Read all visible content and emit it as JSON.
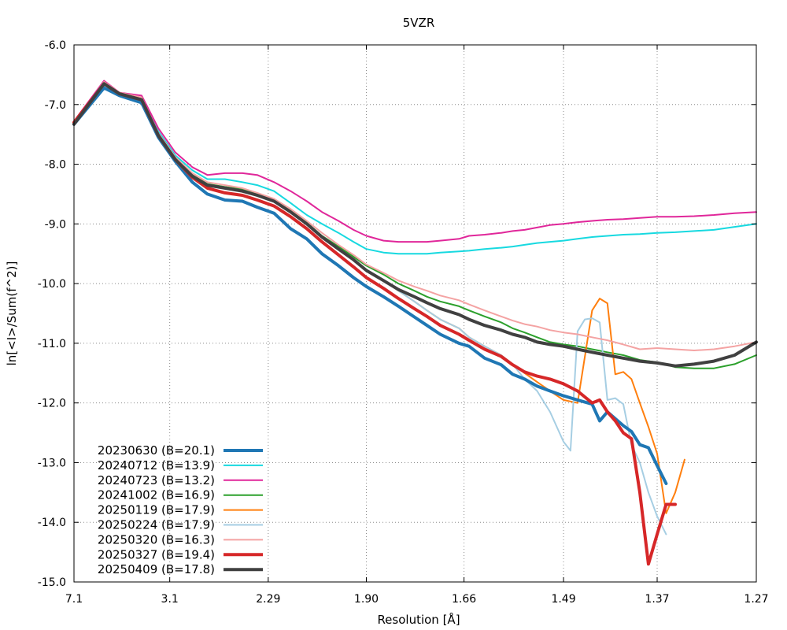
{
  "chart_data": {
    "type": "line",
    "title": "5VZR",
    "xlabel": "Resolution [Å]",
    "ylabel": "ln[<I>/Sum(f^2)]",
    "x_scale": "reciprocal_squared",
    "xlim": [
      7.1,
      1.27
    ],
    "ylim": [
      -15.0,
      -6.0
    ],
    "x_ticks": [
      "7.1",
      "3.1",
      "2.29",
      "1.90",
      "1.66",
      "1.49",
      "1.37",
      "1.27"
    ],
    "y_ticks": [
      "-6.0",
      "-7.0",
      "-8.0",
      "-9.0",
      "-10.0",
      "-11.0",
      "-12.0",
      "-13.0",
      "-14.0",
      "-15.0"
    ],
    "grid": true,
    "legend_position": "bottom-left",
    "series": [
      {
        "name": "20230630 (B=20.1)",
        "color": "#1f77b4",
        "width": 4,
        "x": [
          7.1,
          4.65,
          4.09,
          3.55,
          3.26,
          3.03,
          2.84,
          2.7,
          2.56,
          2.44,
          2.35,
          2.26,
          2.18,
          2.11,
          2.05,
          1.99,
          1.94,
          1.9,
          1.85,
          1.81,
          1.77,
          1.74,
          1.71,
          1.67,
          1.65,
          1.62,
          1.59,
          1.57,
          1.55,
          1.53,
          1.51,
          1.49,
          1.47,
          1.45,
          1.44,
          1.43,
          1.41,
          1.4,
          1.39,
          1.38,
          1.37,
          1.36
        ],
        "y": [
          -7.33,
          -6.72,
          -6.85,
          -6.97,
          -7.55,
          -7.95,
          -8.3,
          -8.5,
          -8.6,
          -8.62,
          -8.72,
          -8.82,
          -9.08,
          -9.25,
          -9.5,
          -9.7,
          -9.9,
          -10.05,
          -10.22,
          -10.38,
          -10.56,
          -10.7,
          -10.85,
          -11.0,
          -11.05,
          -11.25,
          -11.36,
          -11.52,
          -11.6,
          -11.72,
          -11.8,
          -11.88,
          -11.95,
          -12.02,
          -12.3,
          -12.15,
          -12.38,
          -12.48,
          -12.7,
          -12.75,
          -13.05,
          -13.35
        ]
      },
      {
        "name": "20240712 (B=13.9)",
        "color": "#17d9e0",
        "width": 2,
        "x": [
          7.1,
          4.65,
          4.09,
          3.55,
          3.26,
          3.03,
          2.84,
          2.7,
          2.56,
          2.44,
          2.35,
          2.26,
          2.18,
          2.11,
          2.05,
          1.99,
          1.94,
          1.9,
          1.85,
          1.81,
          1.77,
          1.74,
          1.71,
          1.67,
          1.65,
          1.62,
          1.59,
          1.57,
          1.55,
          1.53,
          1.51,
          1.49,
          1.47,
          1.45,
          1.43,
          1.41,
          1.39,
          1.37,
          1.35,
          1.33,
          1.31,
          1.29,
          1.27
        ],
        "y": [
          -7.3,
          -6.62,
          -6.82,
          -6.9,
          -7.45,
          -7.85,
          -8.1,
          -8.25,
          -8.25,
          -8.3,
          -8.35,
          -8.45,
          -8.65,
          -8.85,
          -9.0,
          -9.15,
          -9.3,
          -9.42,
          -9.48,
          -9.5,
          -9.5,
          -9.5,
          -9.48,
          -9.46,
          -9.45,
          -9.42,
          -9.4,
          -9.38,
          -9.35,
          -9.32,
          -9.3,
          -9.28,
          -9.25,
          -9.22,
          -9.2,
          -9.18,
          -9.17,
          -9.15,
          -9.14,
          -9.12,
          -9.1,
          -9.05,
          -9.0
        ]
      },
      {
        "name": "20240723 (B=13.2)",
        "color": "#e0279a",
        "width": 2,
        "x": [
          7.1,
          4.65,
          4.09,
          3.55,
          3.26,
          3.03,
          2.84,
          2.7,
          2.56,
          2.44,
          2.35,
          2.26,
          2.18,
          2.11,
          2.05,
          1.99,
          1.94,
          1.9,
          1.85,
          1.81,
          1.77,
          1.74,
          1.71,
          1.67,
          1.65,
          1.62,
          1.59,
          1.57,
          1.55,
          1.53,
          1.51,
          1.49,
          1.47,
          1.45,
          1.43,
          1.41,
          1.39,
          1.37,
          1.35,
          1.33,
          1.31,
          1.29,
          1.27
        ],
        "y": [
          -7.28,
          -6.6,
          -6.8,
          -6.85,
          -7.4,
          -7.8,
          -8.05,
          -8.18,
          -8.15,
          -8.15,
          -8.18,
          -8.3,
          -8.45,
          -8.62,
          -8.8,
          -8.95,
          -9.1,
          -9.2,
          -9.28,
          -9.3,
          -9.3,
          -9.3,
          -9.28,
          -9.25,
          -9.2,
          -9.18,
          -9.15,
          -9.12,
          -9.1,
          -9.06,
          -9.02,
          -9.0,
          -8.97,
          -8.95,
          -8.93,
          -8.92,
          -8.9,
          -8.88,
          -8.88,
          -8.87,
          -8.85,
          -8.82,
          -8.8
        ]
      },
      {
        "name": "20241002 (B=16.9)",
        "color": "#2ca02c",
        "width": 2,
        "x": [
          7.1,
          4.65,
          4.09,
          3.55,
          3.26,
          3.03,
          2.84,
          2.7,
          2.56,
          2.44,
          2.35,
          2.26,
          2.18,
          2.11,
          2.05,
          1.99,
          1.94,
          1.9,
          1.85,
          1.81,
          1.77,
          1.74,
          1.71,
          1.67,
          1.65,
          1.62,
          1.59,
          1.57,
          1.55,
          1.53,
          1.51,
          1.49,
          1.47,
          1.45,
          1.43,
          1.41,
          1.39,
          1.37,
          1.35,
          1.33,
          1.31,
          1.29,
          1.27
        ],
        "y": [
          -7.3,
          -6.65,
          -6.82,
          -6.9,
          -7.5,
          -7.9,
          -8.18,
          -8.33,
          -8.38,
          -8.42,
          -8.5,
          -8.6,
          -8.78,
          -8.98,
          -9.2,
          -9.38,
          -9.55,
          -9.7,
          -9.85,
          -10.0,
          -10.12,
          -10.22,
          -10.3,
          -10.38,
          -10.45,
          -10.55,
          -10.65,
          -10.75,
          -10.82,
          -10.9,
          -10.98,
          -11.02,
          -11.05,
          -11.1,
          -11.15,
          -11.2,
          -11.28,
          -11.32,
          -11.4,
          -11.42,
          -11.42,
          -11.35,
          -11.2
        ]
      },
      {
        "name": "20250119 (B=17.9)",
        "color": "#ff7f0e",
        "width": 2,
        "x": [
          7.1,
          4.65,
          4.09,
          3.55,
          3.26,
          3.03,
          2.84,
          2.7,
          2.56,
          2.44,
          2.35,
          2.26,
          2.18,
          2.11,
          2.05,
          1.99,
          1.94,
          1.9,
          1.85,
          1.81,
          1.77,
          1.74,
          1.71,
          1.67,
          1.65,
          1.62,
          1.59,
          1.57,
          1.55,
          1.53,
          1.51,
          1.49,
          1.47,
          1.45,
          1.44,
          1.43,
          1.42,
          1.41,
          1.4,
          1.39,
          1.38,
          1.37,
          1.36,
          1.35,
          1.34
        ],
        "y": [
          -7.3,
          -6.65,
          -6.82,
          -6.92,
          -7.52,
          -7.92,
          -8.2,
          -8.35,
          -8.4,
          -8.45,
          -8.52,
          -8.62,
          -8.8,
          -9.0,
          -9.22,
          -9.42,
          -9.6,
          -9.78,
          -9.95,
          -10.12,
          -10.3,
          -10.45,
          -10.6,
          -10.75,
          -10.9,
          -11.05,
          -11.2,
          -11.35,
          -11.5,
          -11.65,
          -11.8,
          -11.95,
          -12.0,
          -10.45,
          -10.25,
          -10.33,
          -11.52,
          -11.48,
          -11.6,
          -12.0,
          -12.4,
          -12.85,
          -13.85,
          -13.5,
          -12.95
        ]
      },
      {
        "name": "20250224 (B=17.9)",
        "color": "#a6cee3",
        "width": 2,
        "x": [
          7.1,
          4.65,
          4.09,
          3.55,
          3.26,
          3.03,
          2.84,
          2.7,
          2.56,
          2.44,
          2.35,
          2.26,
          2.18,
          2.11,
          2.05,
          1.99,
          1.94,
          1.9,
          1.85,
          1.81,
          1.77,
          1.74,
          1.71,
          1.67,
          1.65,
          1.62,
          1.59,
          1.57,
          1.55,
          1.53,
          1.51,
          1.49,
          1.48,
          1.47,
          1.46,
          1.45,
          1.44,
          1.43,
          1.42,
          1.41,
          1.4,
          1.39,
          1.38,
          1.37,
          1.36
        ],
        "y": [
          -7.3,
          -6.65,
          -6.82,
          -6.92,
          -7.52,
          -7.92,
          -8.2,
          -8.35,
          -8.4,
          -8.45,
          -8.52,
          -8.62,
          -8.8,
          -9.0,
          -9.22,
          -9.42,
          -9.6,
          -9.78,
          -9.95,
          -10.12,
          -10.3,
          -10.45,
          -10.6,
          -10.75,
          -10.9,
          -11.05,
          -11.2,
          -11.35,
          -11.6,
          -11.8,
          -12.15,
          -12.65,
          -12.8,
          -10.8,
          -10.6,
          -10.58,
          -10.65,
          -11.95,
          -11.92,
          -12.02,
          -12.7,
          -13.0,
          -13.5,
          -13.9,
          -14.2
        ]
      },
      {
        "name": "20250320 (B=16.3)",
        "color": "#f4a3a3",
        "width": 2,
        "x": [
          7.1,
          4.65,
          4.09,
          3.55,
          3.26,
          3.03,
          2.84,
          2.7,
          2.56,
          2.44,
          2.35,
          2.26,
          2.18,
          2.11,
          2.05,
          1.99,
          1.94,
          1.9,
          1.85,
          1.81,
          1.77,
          1.74,
          1.71,
          1.67,
          1.65,
          1.62,
          1.59,
          1.57,
          1.55,
          1.53,
          1.51,
          1.49,
          1.47,
          1.45,
          1.43,
          1.41,
          1.39,
          1.37,
          1.35,
          1.33,
          1.31,
          1.29,
          1.27
        ],
        "y": [
          -7.3,
          -6.62,
          -6.8,
          -6.88,
          -7.48,
          -7.88,
          -8.15,
          -8.3,
          -8.35,
          -8.4,
          -8.48,
          -8.58,
          -8.75,
          -8.95,
          -9.15,
          -9.35,
          -9.52,
          -9.68,
          -9.82,
          -9.95,
          -10.05,
          -10.12,
          -10.2,
          -10.28,
          -10.35,
          -10.45,
          -10.55,
          -10.62,
          -10.68,
          -10.72,
          -10.78,
          -10.82,
          -10.85,
          -10.9,
          -10.95,
          -11.02,
          -11.1,
          -11.08,
          -11.1,
          -11.12,
          -11.1,
          -11.05,
          -10.98
        ]
      },
      {
        "name": "20250327 (B=19.4)",
        "color": "#d62728",
        "width": 4,
        "x": [
          7.1,
          4.65,
          4.09,
          3.55,
          3.26,
          3.03,
          2.84,
          2.7,
          2.56,
          2.44,
          2.35,
          2.26,
          2.18,
          2.11,
          2.05,
          1.99,
          1.94,
          1.9,
          1.85,
          1.81,
          1.77,
          1.74,
          1.71,
          1.67,
          1.65,
          1.62,
          1.59,
          1.57,
          1.55,
          1.53,
          1.51,
          1.49,
          1.47,
          1.45,
          1.44,
          1.43,
          1.42,
          1.41,
          1.4,
          1.39,
          1.38,
          1.37,
          1.36,
          1.35
        ],
        "y": [
          -7.3,
          -6.65,
          -6.82,
          -6.92,
          -7.52,
          -7.92,
          -8.22,
          -8.4,
          -8.48,
          -8.52,
          -8.6,
          -8.7,
          -8.88,
          -9.08,
          -9.3,
          -9.52,
          -9.72,
          -9.9,
          -10.08,
          -10.25,
          -10.42,
          -10.55,
          -10.7,
          -10.85,
          -10.95,
          -11.1,
          -11.22,
          -11.36,
          -11.48,
          -11.55,
          -11.6,
          -11.68,
          -11.8,
          -12.0,
          -11.95,
          -12.15,
          -12.3,
          -12.5,
          -12.6,
          -13.5,
          -14.7,
          -14.2,
          -13.7,
          -13.7
        ]
      },
      {
        "name": "20250409 (B=17.8)",
        "color": "#404040",
        "width": 4,
        "x": [
          7.1,
          4.65,
          4.09,
          3.55,
          3.26,
          3.03,
          2.84,
          2.7,
          2.56,
          2.44,
          2.35,
          2.26,
          2.18,
          2.11,
          2.05,
          1.99,
          1.94,
          1.9,
          1.85,
          1.81,
          1.77,
          1.74,
          1.71,
          1.67,
          1.65,
          1.62,
          1.59,
          1.57,
          1.55,
          1.53,
          1.51,
          1.49,
          1.47,
          1.45,
          1.43,
          1.41,
          1.39,
          1.37,
          1.35,
          1.33,
          1.31,
          1.29,
          1.27
        ],
        "y": [
          -7.33,
          -6.65,
          -6.82,
          -6.92,
          -7.52,
          -7.92,
          -8.2,
          -8.35,
          -8.4,
          -8.45,
          -8.52,
          -8.62,
          -8.8,
          -9.0,
          -9.22,
          -9.42,
          -9.6,
          -9.78,
          -9.95,
          -10.1,
          -10.22,
          -10.32,
          -10.42,
          -10.52,
          -10.6,
          -10.7,
          -10.78,
          -10.85,
          -10.9,
          -10.98,
          -11.02,
          -11.05,
          -11.1,
          -11.15,
          -11.2,
          -11.25,
          -11.3,
          -11.33,
          -11.38,
          -11.35,
          -11.3,
          -11.2,
          -10.98
        ]
      }
    ]
  }
}
